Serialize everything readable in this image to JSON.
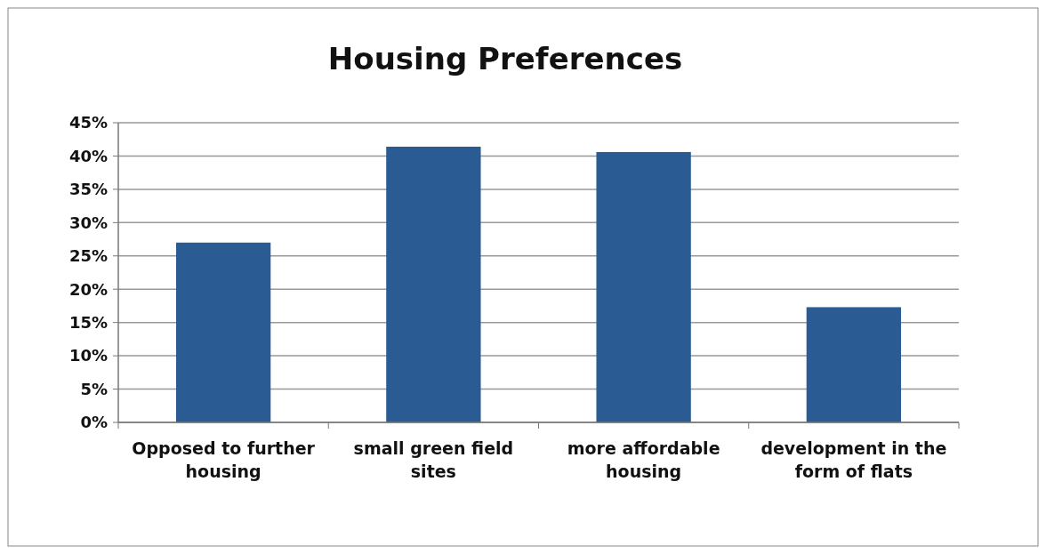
{
  "chart_data": {
    "type": "bar",
    "title": "Housing Preferences",
    "categories": [
      "Opposed to further housing",
      "small green field sites",
      "more affordable housing",
      "development in the form of flats"
    ],
    "values": [
      27,
      41.4,
      40.6,
      17.3
    ],
    "color": "#2a5b93",
    "ylim": [
      0,
      45
    ],
    "yticks": [
      {
        "value": 0,
        "label": "0%"
      },
      {
        "value": 5,
        "label": "5%"
      },
      {
        "value": 10,
        "label": "10%"
      },
      {
        "value": 15,
        "label": "15%"
      },
      {
        "value": 20,
        "label": "20%"
      },
      {
        "value": 25,
        "label": "25%"
      },
      {
        "value": 30,
        "label": "30%"
      },
      {
        "value": 35,
        "label": "35%"
      },
      {
        "value": 40,
        "label": "40%"
      },
      {
        "value": 45,
        "label": "45%"
      }
    ],
    "grid": true
  }
}
